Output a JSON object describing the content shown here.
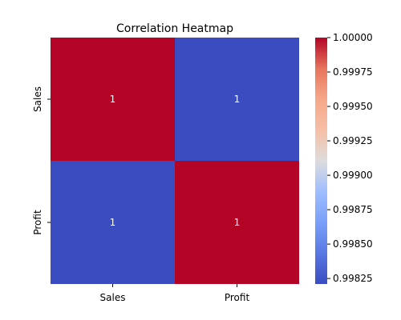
{
  "chart_data": {
    "type": "heatmap",
    "title": "Correlation Heatmap",
    "x_categories": [
      "Sales",
      "Profit"
    ],
    "y_categories": [
      "Sales",
      "Profit"
    ],
    "values": [
      [
        1.0,
        0.99821
      ],
      [
        0.99821,
        1.0
      ]
    ],
    "annotations": [
      [
        "1",
        "1"
      ],
      [
        "1",
        "1"
      ]
    ],
    "colormap": "coolwarm",
    "colorbar": {
      "min": 0.99821,
      "max": 1.0,
      "ticks": [
        0.99825,
        0.9985,
        0.99875,
        0.999,
        0.99925,
        0.9995,
        0.99975,
        1.0
      ],
      "tick_labels": [
        "0.99825",
        "0.99850",
        "0.99875",
        "0.99900",
        "0.99925",
        "0.99950",
        "0.99975",
        "1.00000"
      ]
    },
    "colors": {
      "high": "#b40426",
      "low": "#3b4cc0",
      "annotation_text": "#ffffff"
    }
  }
}
